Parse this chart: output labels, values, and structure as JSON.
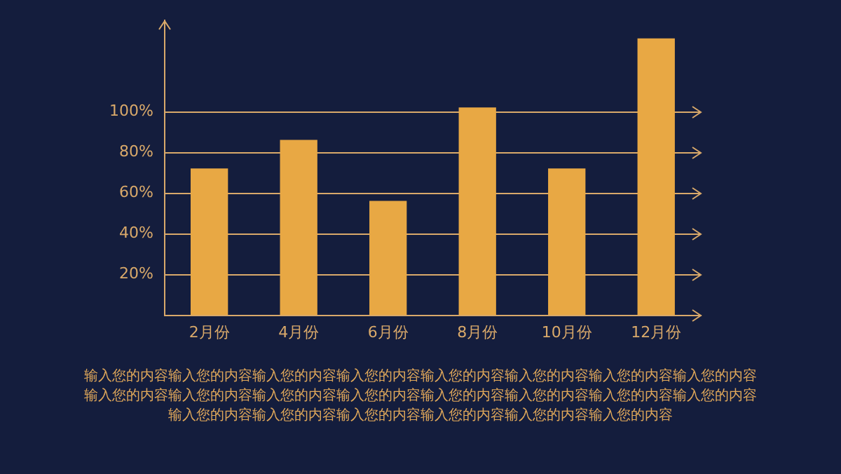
{
  "chart_data": {
    "type": "bar",
    "categories": [
      "2月份",
      "4月份",
      "6月份",
      "8月份",
      "10月份",
      "12月份"
    ],
    "values": [
      72,
      86,
      56,
      102,
      72,
      136
    ],
    "color": "#e8a844",
    "ylim": [
      0,
      145
    ],
    "yticks": [
      {
        "value": 0,
        "label": null
      },
      {
        "value": 20,
        "label": "20%"
      },
      {
        "value": 40,
        "label": "40%"
      },
      {
        "value": 60,
        "label": "60%"
      },
      {
        "value": 80,
        "label": "80%"
      },
      {
        "value": 100,
        "label": "100%"
      }
    ],
    "grid": "y",
    "legend": false,
    "annotations": [
      "输入您的内容输入您的内容输入您的内容输入您的内容输入您的内容输入您的内容输入您的内容输入您的内容输入您的内容输入您的内容输入您的内容输入您的内容输入您的内容输入您的内容输入您的内容输入您的内容输入您的内容输入您的内容输入您的内容输入您的内容输入您的内容输入您的内容"
    ]
  }
}
